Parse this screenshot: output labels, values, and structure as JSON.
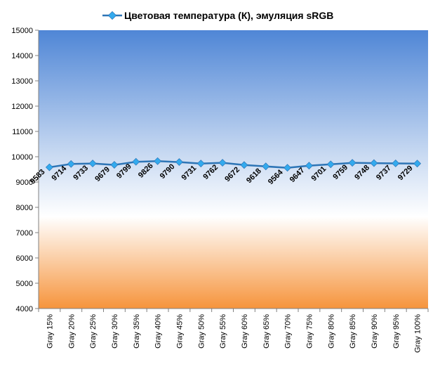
{
  "chart_data": {
    "type": "line",
    "title": "Цветовая температура (К), эмуляция sRGB",
    "legend": {
      "position": "top",
      "series_name": "Цветовая температура (К), эмуляция sRGB"
    },
    "categories": [
      "Gray 15%",
      "Gray 20%",
      "Gray 25%",
      "Gray 30%",
      "Gray 35%",
      "Gray 40%",
      "Gray 45%",
      "Gray 50%",
      "Gray 55%",
      "Gray 60%",
      "Gray 65%",
      "Gray 70%",
      "Gray 75%",
      "Gray 80%",
      "Gray 85%",
      "Gray 90%",
      "Gray 95%",
      "Gray 100%"
    ],
    "series": [
      {
        "name": "Цветовая температура (К), эмуляция sRGB",
        "values": [
          9583,
          9714,
          9733,
          9679,
          9799,
          9826,
          9790,
          9731,
          9762,
          9672,
          9618,
          9564,
          9647,
          9701,
          9759,
          9748,
          9737,
          9729
        ],
        "color": "#2e75b6",
        "marker_color": "#33aaee"
      }
    ],
    "xlabel": "",
    "ylabel": "",
    "ylim": [
      4000,
      15000
    ],
    "yticks": [
      4000,
      5000,
      6000,
      7000,
      8000,
      9000,
      10000,
      11000,
      12000,
      13000,
      14000,
      15000
    ],
    "grid": false,
    "background": {
      "type": "gradient",
      "stops": [
        {
          "color": "#4f86d6"
        },
        {
          "color": "#c9daf2"
        },
        {
          "color": "#ffffff"
        },
        {
          "color": "#f6943c"
        }
      ]
    }
  }
}
